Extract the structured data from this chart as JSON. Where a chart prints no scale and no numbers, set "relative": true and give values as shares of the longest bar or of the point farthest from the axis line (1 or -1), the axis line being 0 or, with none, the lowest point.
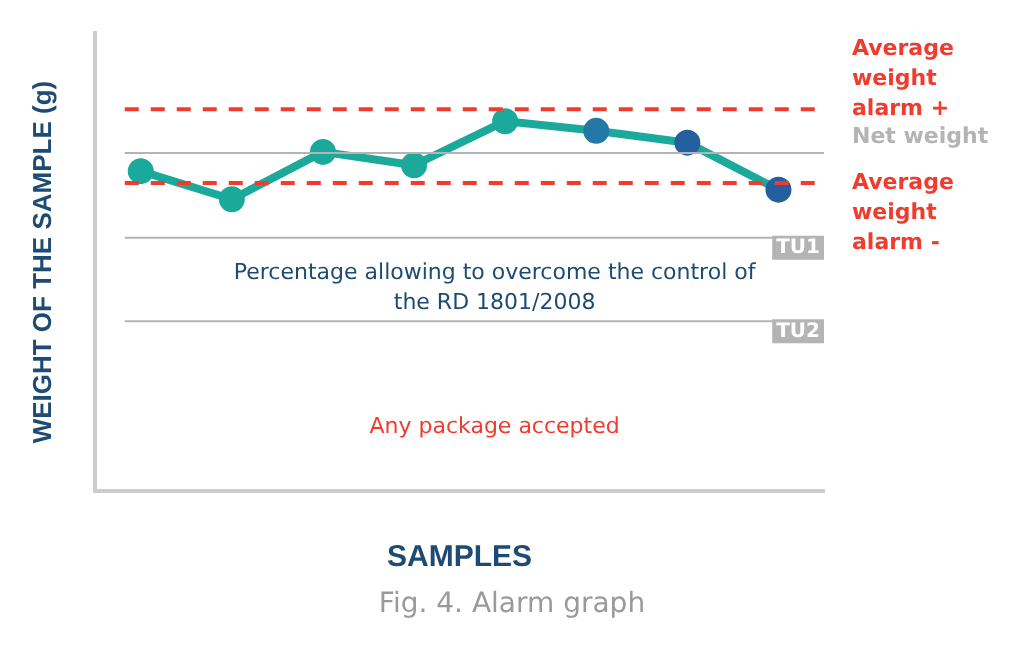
{
  "chart_data": {
    "type": "line",
    "relative": true,
    "xlabel": "SAMPLES",
    "ylabel": "WEIGHT OF THE SAMPLE (g)",
    "categories": [
      null,
      null,
      null,
      null,
      null,
      null,
      null,
      null
    ],
    "series": [
      {
        "color": "#1aa99a",
        "colors": [
          "#1aa99a",
          "#1aa99a",
          "#1aa99a",
          "#1aa99a",
          "#1aa99a",
          "#2478a6",
          "#245fa0",
          "#245fa0"
        ],
        "values": [
          0.865,
          0.789,
          0.917,
          0.881,
          1,
          0.974,
          0.942,
          0.815
        ]
      }
    ],
    "marker": "circle",
    "line_style": "solid",
    "grid": false,
    "legend": false,
    "ref_lines": [
      {
        "axis": "y",
        "value": 1.032,
        "label": "Average weight alarm +",
        "color": "#f03c2e",
        "line_style": "dashed"
      },
      {
        "axis": "y",
        "value": 0.914,
        "label": "Net weight",
        "color": "#b4b4b4",
        "line_style": "solid"
      },
      {
        "axis": "y",
        "value": 0.833,
        "label": "Average weight alarm -",
        "color": "#f03c2e",
        "line_style": "dashed"
      },
      {
        "axis": "y",
        "value": 0.685,
        "label": "TU1",
        "color": "#b4b4b4",
        "line_style": "solid"
      },
      {
        "axis": "y",
        "value": 0.459,
        "label": "TU2",
        "color": "#b4b4b4",
        "line_style": "solid"
      }
    ],
    "annotations": [
      "Percentage allowing to overcome the control of the RD 1801/2008",
      "Any package accepted",
      "Fig. 4. Alarm graph"
    ]
  }
}
